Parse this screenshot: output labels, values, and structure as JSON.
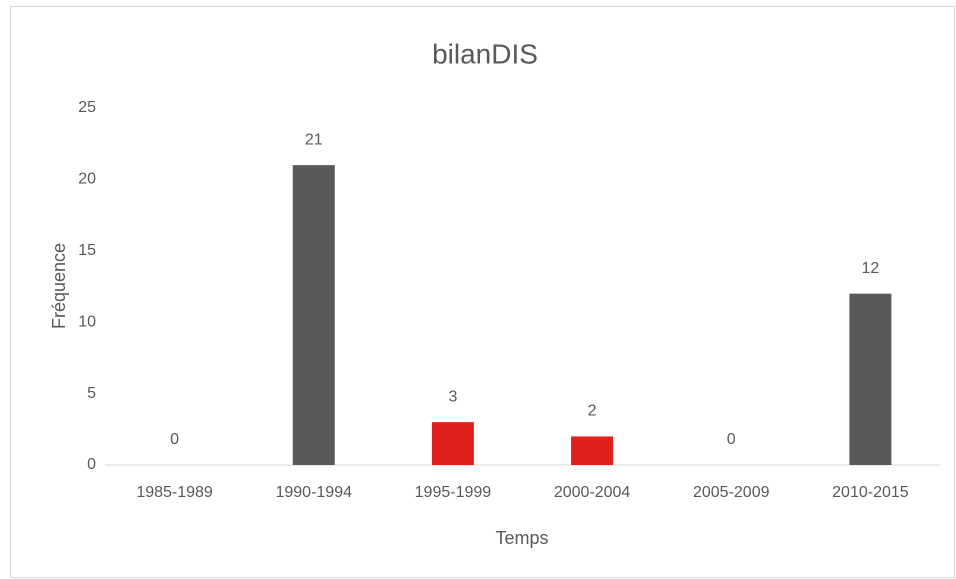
{
  "chart_data": {
    "type": "bar",
    "title": "bilanDIS",
    "x_label": "Temps",
    "y_label": "Fréquence",
    "categories": [
      "1985-1989",
      "1990-1994",
      "1995-1999",
      "2000-2004",
      "2005-2009",
      "2010-2015"
    ],
    "values": [
      0,
      21,
      3,
      2,
      0,
      12
    ],
    "colors": [
      "#595959",
      "#595959",
      "#e0201b",
      "#e0201b",
      "#595959",
      "#595959"
    ],
    "ylim": [
      0,
      25
    ],
    "yticks": [
      0,
      5,
      10,
      15,
      20,
      25
    ],
    "grid": false
  }
}
